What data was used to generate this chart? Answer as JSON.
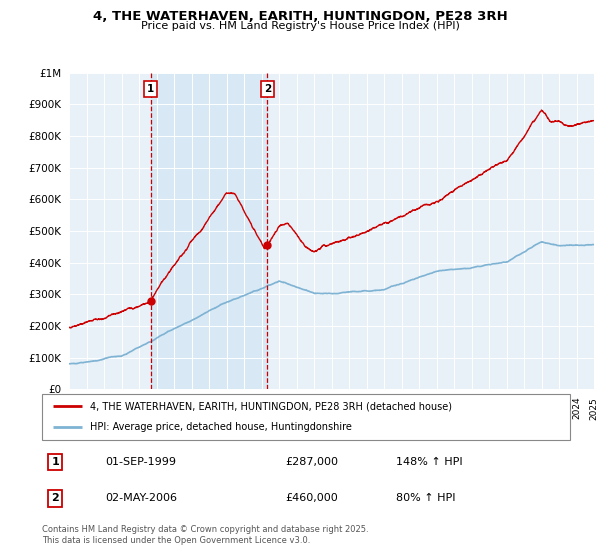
{
  "title": "4, THE WATERHAVEN, EARITH, HUNTINGDON, PE28 3RH",
  "subtitle": "Price paid vs. HM Land Registry's House Price Index (HPI)",
  "legend_line1": "4, THE WATERHAVEN, EARITH, HUNTINGDON, PE28 3RH (detached house)",
  "legend_line2": "HPI: Average price, detached house, Huntingdonshire",
  "transaction1_label": "1",
  "transaction1_date": "01-SEP-1999",
  "transaction1_price": "£287,000",
  "transaction1_hpi": "148% ↑ HPI",
  "transaction2_label": "2",
  "transaction2_date": "02-MAY-2006",
  "transaction2_price": "£460,000",
  "transaction2_hpi": "80% ↑ HPI",
  "footnote": "Contains HM Land Registry data © Crown copyright and database right 2025.\nThis data is licensed under the Open Government Licence v3.0.",
  "line_color_red": "#cc0000",
  "line_color_blue": "#7fb3d3",
  "vline_color": "#cc0000",
  "shade_color": "#d6e8f5",
  "background_color": "#e8f0f8",
  "ylim": [
    0,
    1000000
  ],
  "yticks": [
    0,
    100000,
    200000,
    300000,
    400000,
    500000,
    600000,
    700000,
    800000,
    900000,
    1000000
  ],
  "ytick_labels": [
    "£0",
    "£100K",
    "£200K",
    "£300K",
    "£400K",
    "£500K",
    "£600K",
    "£700K",
    "£800K",
    "£900K",
    "£1M"
  ],
  "x_start_year": 1995,
  "x_end_year": 2025,
  "transaction1_year": 1999.67,
  "transaction2_year": 2006.33,
  "price_1999": 287000,
  "price_2006": 460000
}
